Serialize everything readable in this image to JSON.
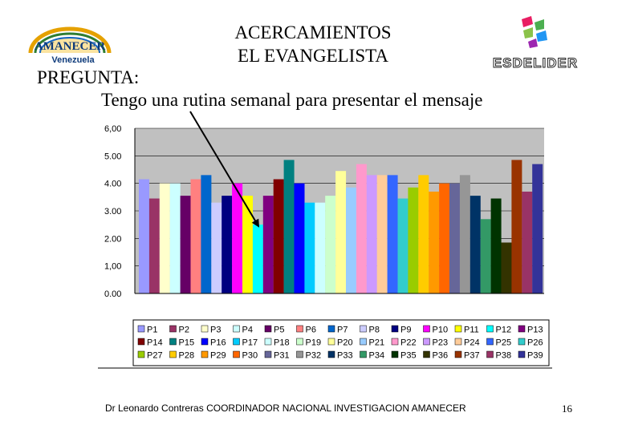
{
  "header": {
    "title_line1": "ACERCAMIENTOS",
    "title_line2": "EL EVANGELISTA",
    "question_label": "PREGUNTA:",
    "question_text": "Tengo una rutina semanal para presentar el mensaje"
  },
  "logos": {
    "left_line1": "AMANECER",
    "left_line2": "Venezuela",
    "right_text": "ESDELIDER"
  },
  "footer": {
    "credit": "Dr Leonardo Contreras   COORDINADOR NACIONAL INVESTIGACION AMANECER",
    "page_number": "16"
  },
  "chart_data": {
    "type": "bar",
    "title": "",
    "xlabel": "",
    "ylabel": "",
    "ylim": [
      0,
      6
    ],
    "yticks": [
      "6,00",
      "5.00",
      "4.00",
      "3.00",
      "2.00",
      "1,00",
      "0.00"
    ],
    "grid": true,
    "legend_position": "bottom",
    "series": [
      {
        "name": "P1",
        "value": 4.15,
        "color": "#9999ff"
      },
      {
        "name": "P2",
        "value": 3.45,
        "color": "#993366"
      },
      {
        "name": "P3",
        "value": 4.0,
        "color": "#ffffcc"
      },
      {
        "name": "P4",
        "value": 4.0,
        "color": "#ccffff"
      },
      {
        "name": "P5",
        "value": 3.55,
        "color": "#660066"
      },
      {
        "name": "P6",
        "value": 4.15,
        "color": "#ff8080"
      },
      {
        "name": "P7",
        "value": 4.3,
        "color": "#0066cc"
      },
      {
        "name": "P8",
        "value": 3.3,
        "color": "#ccccff"
      },
      {
        "name": "P9",
        "value": 3.55,
        "color": "#000080"
      },
      {
        "name": "P10",
        "value": 4.0,
        "color": "#ff00ff"
      },
      {
        "name": "P11",
        "value": 3.55,
        "color": "#ffff00"
      },
      {
        "name": "P12",
        "value": 2.5,
        "color": "#00ffff"
      },
      {
        "name": "P13",
        "value": 3.55,
        "color": "#800080"
      },
      {
        "name": "P14",
        "value": 4.15,
        "color": "#800000"
      },
      {
        "name": "P15",
        "value": 4.85,
        "color": "#008080"
      },
      {
        "name": "P16",
        "value": 4.0,
        "color": "#0000ff"
      },
      {
        "name": "P17",
        "value": 3.3,
        "color": "#00ccff"
      },
      {
        "name": "P18",
        "value": 3.3,
        "color": "#ccffff"
      },
      {
        "name": "P19",
        "value": 3.55,
        "color": "#ccffcc"
      },
      {
        "name": "P20",
        "value": 4.45,
        "color": "#ffff99"
      },
      {
        "name": "P21",
        "value": 3.85,
        "color": "#99ccff"
      },
      {
        "name": "P22",
        "value": 4.7,
        "color": "#ff99cc"
      },
      {
        "name": "P23",
        "value": 4.3,
        "color": "#cc99ff"
      },
      {
        "name": "P24",
        "value": 4.3,
        "color": "#ffcc99"
      },
      {
        "name": "P25",
        "value": 4.3,
        "color": "#3366ff"
      },
      {
        "name": "P26",
        "value": 3.45,
        "color": "#33cccc"
      },
      {
        "name": "P27",
        "value": 3.85,
        "color": "#99cc00"
      },
      {
        "name": "P28",
        "value": 4.3,
        "color": "#ffcc00"
      },
      {
        "name": "P29",
        "value": 3.7,
        "color": "#ff9900"
      },
      {
        "name": "P30",
        "value": 4.0,
        "color": "#ff6600"
      },
      {
        "name": "P31",
        "value": 4.0,
        "color": "#666699"
      },
      {
        "name": "P32",
        "value": 4.3,
        "color": "#969696"
      },
      {
        "name": "P33",
        "value": 3.55,
        "color": "#003366"
      },
      {
        "name": "P34",
        "value": 2.7,
        "color": "#339966"
      },
      {
        "name": "P35",
        "value": 3.45,
        "color": "#003300"
      },
      {
        "name": "P36",
        "value": 1.85,
        "color": "#333300"
      },
      {
        "name": "P37",
        "value": 4.85,
        "color": "#993300"
      },
      {
        "name": "P38",
        "value": 3.7,
        "color": "#993366"
      },
      {
        "name": "P39",
        "value": 4.7,
        "color": "#333399"
      }
    ]
  }
}
